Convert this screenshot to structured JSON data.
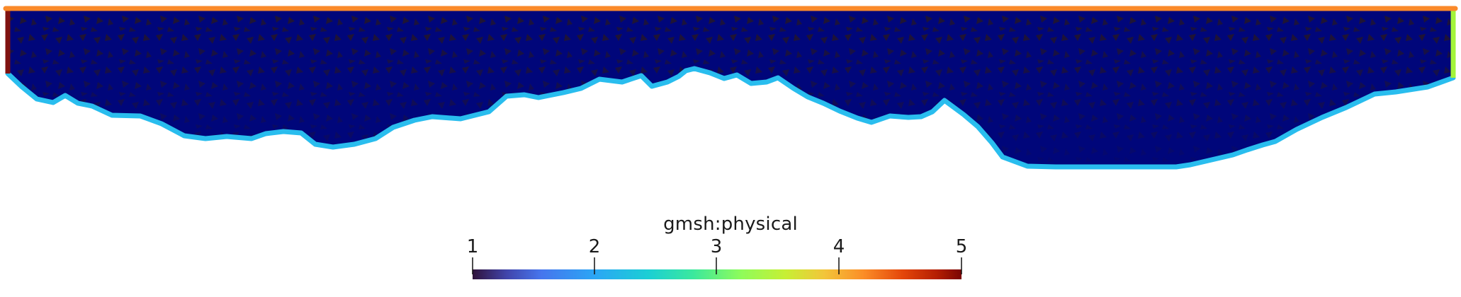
{
  "colorbar": {
    "title": "gmsh:physical",
    "ticks": [
      "1",
      "2",
      "3",
      "4",
      "5"
    ]
  },
  "colors": {
    "domain_fill": "#00067a",
    "bottom_boundary": "#29bdee",
    "top_boundary": "#fa8a2a",
    "left_boundary": "#7f1210",
    "right_boundary": "#a3f43a",
    "mesh_element_shade": "#2b1a18"
  },
  "colormap_name": "turbo"
}
